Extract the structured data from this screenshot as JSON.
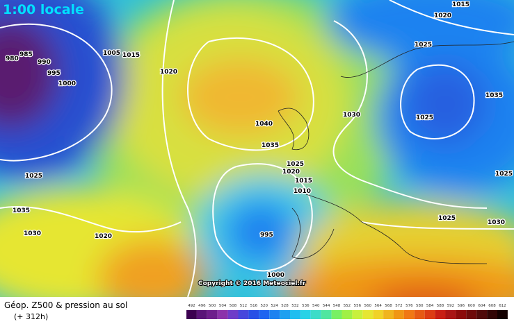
{
  "header": {
    "time": "1:00 locale"
  },
  "isobars": [
    1015,
    1020,
    980,
    985,
    990,
    995,
    1000,
    1005,
    1015,
    1020,
    1025,
    1035,
    1030,
    1025,
    1040,
    1035,
    1025,
    1020,
    1015,
    1010,
    1025,
    1035,
    1030,
    1020,
    995,
    1000,
    1025,
    1030,
    1025
  ],
  "copyright": "Copyright © 2016 Meteociel.fr",
  "footer": {
    "title": "Géop. Z500 & pression au sol",
    "lead": "(+ 312h)"
  },
  "legend": {
    "values": [
      492,
      496,
      500,
      504,
      508,
      512,
      516,
      520,
      524,
      528,
      532,
      536,
      540,
      544,
      548,
      552,
      556,
      560,
      564,
      568,
      572,
      576,
      580,
      584,
      588,
      592,
      596,
      600,
      604,
      608,
      612
    ],
    "colors": [
      "#3c0050",
      "#5a1478",
      "#6e1e8c",
      "#8c32aa",
      "#6e3cc8",
      "#4646dc",
      "#2850e6",
      "#1e64f0",
      "#1e82f0",
      "#1ea0f0",
      "#1ebef0",
      "#28d2e6",
      "#3cdcc8",
      "#50e6a0",
      "#78f064",
      "#a0f046",
      "#c8f03c",
      "#e6e632",
      "#f0d228",
      "#f0b41e",
      "#f09614",
      "#f07814",
      "#e65a14",
      "#dc3c14",
      "#c81e14",
      "#aa1414",
      "#8c0a0a",
      "#6e0a0a",
      "#500a0a",
      "#320505",
      "#140000"
    ]
  }
}
